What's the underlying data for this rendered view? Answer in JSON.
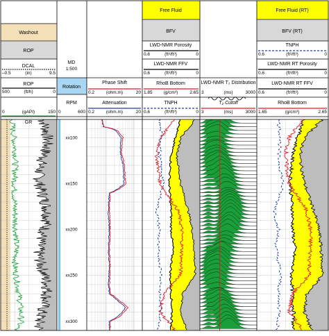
{
  "colors": {
    "washout": "#f3dfb8",
    "header_gray": "#d8d8d8",
    "rotation": "#a9d6f2",
    "free_fluid": "#ffff00",
    "nmr_green": "#1a9e3a",
    "red": "#e01b24",
    "blue": "#1f3f9f",
    "green_gr": "#27a844",
    "gray_fill": "#bdbdbd"
  },
  "depth": {
    "title": "MD",
    "scale": "1:500",
    "ticks": [
      "xx100",
      "xx150",
      "xx200",
      "xx250",
      "xx300"
    ],
    "tick_values": [
      100,
      150,
      200,
      250,
      300
    ],
    "range": [
      80,
      310
    ]
  },
  "track1": {
    "washout": "Washout",
    "rop": {
      "name": "ROP"
    },
    "dcal": {
      "name": "DCAL",
      "min": "–0.5",
      "unit": "(in)",
      "max": "9.5"
    },
    "rop_scale": {
      "name": "ROP",
      "min": "500",
      "unit": "(ft/h)",
      "max": "0"
    },
    "gr": {
      "name": "GR",
      "min": "0",
      "unit": "(gAPI)",
      "max": "150"
    }
  },
  "track2": {
    "rotation": "Rotation",
    "rpm": {
      "name": "RPM",
      "min": "0",
      "max": "600"
    }
  },
  "track3": {
    "phase": {
      "name": "Phase Shift",
      "min": "0.2",
      "unit": "(ohm.m)",
      "max": "20"
    },
    "atten": {
      "name": "Attenuation",
      "min": "0.2",
      "unit": "(ohm.m)",
      "max": "20"
    }
  },
  "track4": {
    "free_fluid": "Free Fluid",
    "bfv": "BFV",
    "porosity": {
      "name": "LWD-NMR Porosity",
      "min": "0.6",
      "unit": "(ft³/ft³)",
      "max": "0"
    },
    "ffv": {
      "name": "LWD-NMR FFV",
      "min": "0.6",
      "unit": "(ft³/ft³)",
      "max": "0"
    },
    "rhob": {
      "name": "RhoB Bottom",
      "min": "1.85",
      "unit": "(g/cm³)",
      "max": "2.65"
    },
    "tnph": {
      "name": "TNPH",
      "min": "0.6",
      "unit": "(ft³/ft³)",
      "max": "0"
    }
  },
  "track5": {
    "dist": "LWD-NMR T₂ Distribution",
    "dist_min": "3",
    "dist_unit": "(ms)",
    "dist_max": "3000",
    "cutoff": "T₂ Cutoff",
    "cutoff_min": "3",
    "cutoff_unit": "(ms)",
    "cutoff_max": "3000"
  },
  "track6": {
    "free_fluid": "Free Fluid (RT)",
    "bfv": "BFV (RT)",
    "tnph": {
      "name": "TNPH",
      "min": "0.6",
      "unit": "(ft³/ft³)",
      "max": "0"
    },
    "porosity": {
      "name": "LWD-NMR RT Porosity",
      "min": "0.6",
      "unit": "(ft³/ft³)",
      "max": "0"
    },
    "ffv": {
      "name": "LWD-NMR RT FFV",
      "min": "0.6",
      "unit": "(ft³/ft³)",
      "max": "0"
    },
    "rhob": {
      "name": "RhoB Bottom",
      "min": "1.65",
      "unit": "(g/cm³)",
      "max": "2.65"
    }
  },
  "chart_data": {
    "type": "line",
    "depth_unit": "ft",
    "depth_range": [
      80,
      310
    ],
    "series": [
      {
        "name": "GR",
        "x_range": [
          0,
          150
        ],
        "depth": [
          80,
          100,
          120,
          140,
          160,
          180,
          200,
          220,
          240,
          260,
          280,
          300,
          310
        ],
        "values": [
          30,
          35,
          40,
          38,
          36,
          38,
          40,
          42,
          38,
          45,
          52,
          55,
          40
        ]
      },
      {
        "name": "Phase Shift",
        "x_range": [
          0.2,
          20
        ],
        "log": true,
        "depth": [
          80,
          88,
          92,
          100,
          115,
          130,
          150,
          160,
          180,
          200,
          220,
          240,
          260,
          270,
          278,
          285,
          300,
          310
        ],
        "values": [
          0.7,
          0.8,
          2.5,
          4.0,
          3.5,
          4.5,
          5.0,
          1.4,
          1.3,
          1.4,
          1.3,
          1.4,
          1.3,
          1.4,
          3.0,
          6.0,
          1.4,
          1.4
        ]
      },
      {
        "name": "Attenuation",
        "x_range": [
          0.2,
          20
        ],
        "log": true,
        "depth": [
          80,
          88,
          92,
          100,
          115,
          130,
          150,
          160,
          180,
          200,
          220,
          240,
          260,
          270,
          278,
          285,
          300,
          310
        ],
        "values": [
          0.7,
          0.8,
          2.2,
          3.5,
          3.2,
          4.0,
          4.4,
          1.3,
          1.2,
          1.3,
          1.2,
          1.3,
          1.2,
          1.3,
          2.6,
          5.0,
          1.3,
          1.3
        ]
      },
      {
        "name": "LWD-NMR Porosity",
        "x_range": [
          0.6,
          0
        ],
        "depth": [
          80,
          100,
          120,
          150,
          180,
          200,
          220,
          250,
          270,
          290,
          310
        ],
        "values": [
          0.2,
          0.26,
          0.3,
          0.32,
          0.3,
          0.3,
          0.28,
          0.31,
          0.3,
          0.29,
          0.3
        ]
      },
      {
        "name": "LWD-NMR FFV",
        "x_range": [
          0.6,
          0
        ],
        "depth": [
          80,
          100,
          120,
          150,
          180,
          200,
          220,
          250,
          270,
          290,
          310
        ],
        "values": [
          0.05,
          0.2,
          0.24,
          0.2,
          0.12,
          0.08,
          0.06,
          0.05,
          0.18,
          0.2,
          0.14
        ]
      },
      {
        "name": "TNPH",
        "x_range": [
          0.6,
          0
        ],
        "depth": [
          80,
          100,
          120,
          150,
          180,
          200,
          220,
          250,
          270,
          290,
          310
        ],
        "values": [
          0.42,
          0.4,
          0.42,
          0.38,
          0.45,
          0.42,
          0.44,
          0.4,
          0.42,
          0.41,
          0.43
        ]
      },
      {
        "name": "RhoB Bottom",
        "x_range": [
          1.85,
          2.65
        ],
        "depth": [
          80,
          100,
          120,
          150,
          180,
          200,
          220,
          250,
          270,
          290,
          310
        ],
        "values": [
          2.3,
          2.1,
          2.05,
          2.1,
          2.35,
          2.4,
          2.4,
          2.38,
          2.15,
          2.1,
          2.3
        ]
      },
      {
        "name": "T₂ Cutoff",
        "x_range": [
          3,
          3000
        ],
        "log": true,
        "depth": [
          80,
          310
        ],
        "values": [
          33,
          33
        ]
      }
    ]
  }
}
